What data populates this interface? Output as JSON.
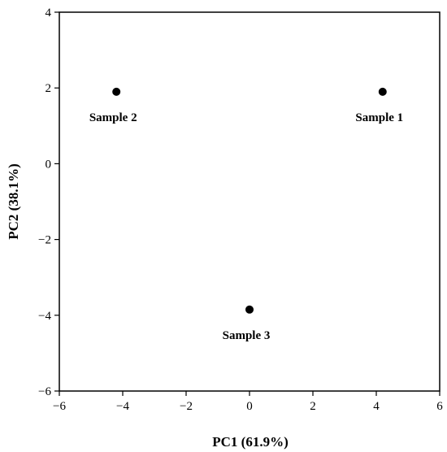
{
  "chart_data": {
    "type": "scatter",
    "xlabel": "PC1 (61.9%)",
    "ylabel": "PC2 (38.1%)",
    "xlim": [
      -6,
      6
    ],
    "ylim": [
      -6,
      4
    ],
    "xticks": [
      -6,
      -4,
      -2,
      0,
      2,
      4,
      6
    ],
    "yticks": [
      -6,
      -4,
      -2,
      0,
      2,
      4
    ],
    "xtick_labels": [
      "−6",
      "−4",
      "−2",
      "0",
      "2",
      "4",
      "6"
    ],
    "ytick_labels": [
      "−6",
      "−4",
      "−2",
      "0",
      "2",
      "4"
    ],
    "grid": false,
    "legend": "none",
    "marker_color": "#000000",
    "points": [
      {
        "label": "Sample 1",
        "x": 4.2,
        "y": 1.9
      },
      {
        "label": "Sample 2",
        "x": -4.2,
        "y": 1.9
      },
      {
        "label": "Sample 3",
        "x": 0.0,
        "y": -3.85
      }
    ]
  }
}
